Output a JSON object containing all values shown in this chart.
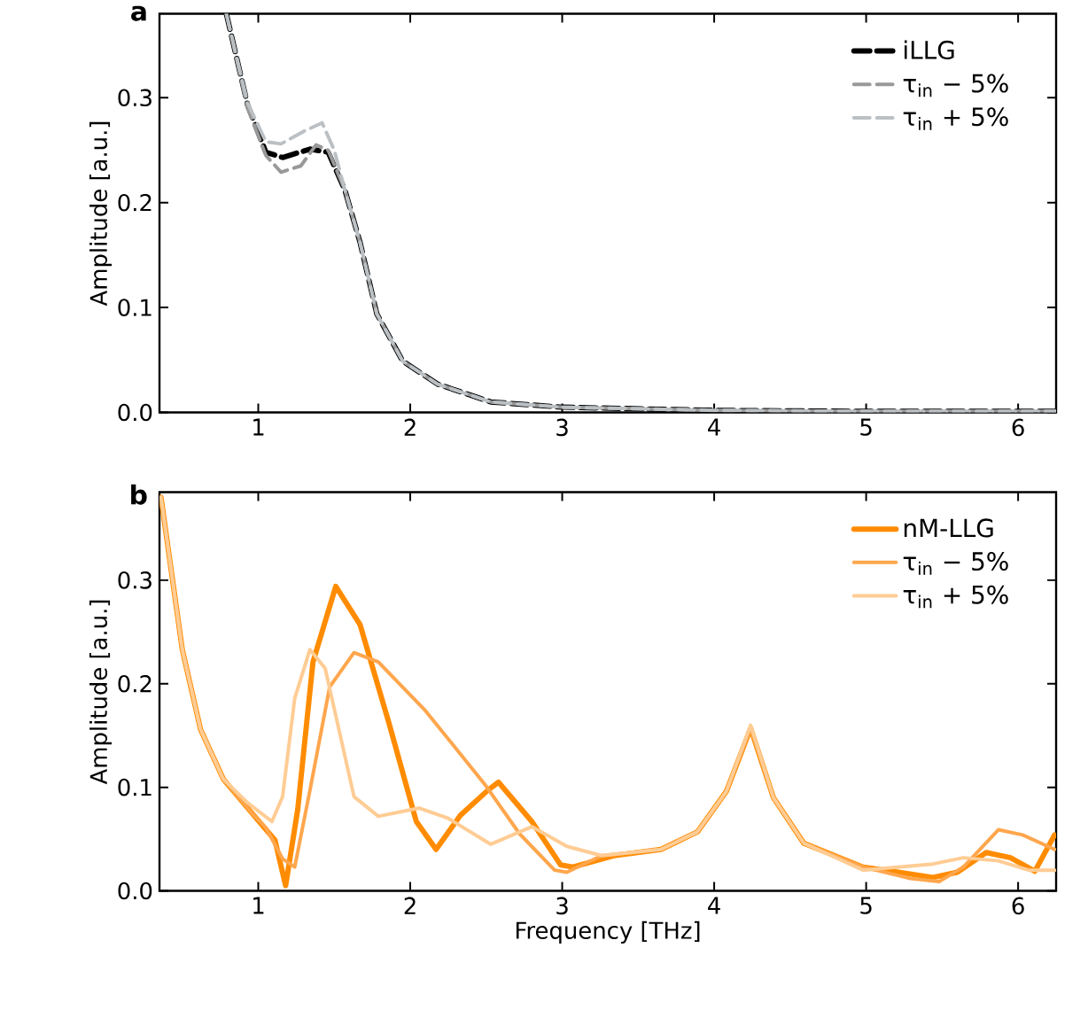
{
  "chart_data": [
    {
      "type": "line",
      "title": "a",
      "ylabel": "Amplitude [a.u.]",
      "xlim": [
        0.35,
        6.25
      ],
      "ylim": [
        0,
        0.38
      ],
      "xticks": [
        1,
        2,
        3,
        4,
        5,
        6
      ],
      "yticks": [
        {
          "value": 0,
          "label": "0.0"
        },
        0.1,
        0.2,
        0.3
      ],
      "legend": "top right",
      "grid": false,
      "line_style": "dashed",
      "series": [
        {
          "name": "iLLG",
          "color": "#000000",
          "x": [
            0.79,
            0.93,
            1.05,
            1.16,
            1.34,
            1.46,
            1.57,
            1.67,
            1.78,
            1.95,
            2.18,
            2.53,
            3.0,
            4.0,
            5.0,
            6.25
          ],
          "values": [
            0.38,
            0.293,
            0.248,
            0.243,
            0.251,
            0.248,
            0.212,
            0.162,
            0.094,
            0.049,
            0.027,
            0.01,
            0.005,
            0.002,
            0.001,
            0.001
          ]
        },
        {
          "name": "τ$_{in}$ − 5%",
          "color": "#999999",
          "x": [
            0.79,
            0.93,
            1.05,
            1.15,
            1.28,
            1.38,
            1.46,
            1.57,
            1.67,
            1.78,
            1.95,
            2.18,
            2.53,
            3.0,
            4.0,
            5.0,
            6.25
          ],
          "values": [
            0.38,
            0.29,
            0.245,
            0.229,
            0.235,
            0.255,
            0.25,
            0.212,
            0.162,
            0.094,
            0.049,
            0.027,
            0.01,
            0.005,
            0.002,
            0.001,
            0.001
          ]
        },
        {
          "name": "τ$_{in}$ + 5%",
          "color": "#bbc0c4",
          "x": [
            0.79,
            0.93,
            1.05,
            1.15,
            1.3,
            1.42,
            1.5,
            1.57,
            1.67,
            1.78,
            1.95,
            2.18,
            2.53,
            3.0,
            4.0,
            5.0,
            6.25
          ],
          "values": [
            0.38,
            0.295,
            0.258,
            0.256,
            0.268,
            0.276,
            0.25,
            0.212,
            0.162,
            0.094,
            0.049,
            0.027,
            0.01,
            0.005,
            0.002,
            0.001,
            0.001
          ]
        }
      ]
    },
    {
      "type": "line",
      "title": "b",
      "xlabel": "Frequency [THz]",
      "ylabel": "Amplitude [a.u.]",
      "xlim": [
        0.35,
        6.25
      ],
      "ylim": [
        0,
        0.385
      ],
      "xticks": [
        1,
        2,
        3,
        4,
        5,
        6
      ],
      "yticks": [
        {
          "value": 0,
          "label": "0.0"
        },
        0.1,
        0.2,
        0.3
      ],
      "legend": "top right",
      "grid": false,
      "line_style": "solid",
      "series": [
        {
          "name": "nM-LLG",
          "color": "#ff8c00",
          "x": [
            0.36,
            0.5,
            0.62,
            0.77,
            0.97,
            1.11,
            1.18,
            1.26,
            1.36,
            1.51,
            1.67,
            1.86,
            2.04,
            2.17,
            2.33,
            2.51,
            2.58,
            2.8,
            2.99,
            3.07,
            3.34,
            3.65,
            3.89,
            4.08,
            4.24,
            4.39,
            4.59,
            4.98,
            5.44,
            5.6,
            5.79,
            5.95,
            6.11,
            6.24
          ],
          "values": [
            0.38,
            0.233,
            0.156,
            0.108,
            0.073,
            0.049,
            0.005,
            0.079,
            0.221,
            0.294,
            0.257,
            0.162,
            0.067,
            0.04,
            0.073,
            0.097,
            0.105,
            0.067,
            0.025,
            0.023,
            0.034,
            0.04,
            0.057,
            0.096,
            0.157,
            0.09,
            0.046,
            0.023,
            0.013,
            0.018,
            0.037,
            0.032,
            0.019,
            0.054
          ]
        },
        {
          "name": "τ$_{in}$ − 5%",
          "color": "#ffa64d",
          "x": [
            0.36,
            0.5,
            0.62,
            0.77,
            0.97,
            1.05,
            1.16,
            1.24,
            1.34,
            1.47,
            1.63,
            1.79,
            2.1,
            2.49,
            2.72,
            2.95,
            3.03,
            3.26,
            3.65,
            3.89,
            4.08,
            4.24,
            4.39,
            4.59,
            4.98,
            5.29,
            5.48,
            5.64,
            5.87,
            6.03,
            6.24
          ],
          "values": [
            0.38,
            0.233,
            0.156,
            0.108,
            0.073,
            0.061,
            0.031,
            0.023,
            0.097,
            0.197,
            0.23,
            0.221,
            0.174,
            0.103,
            0.055,
            0.02,
            0.018,
            0.034,
            0.04,
            0.057,
            0.096,
            0.157,
            0.09,
            0.046,
            0.023,
            0.012,
            0.009,
            0.023,
            0.059,
            0.054,
            0.04
          ]
        },
        {
          "name": "τ$_{in}$ + 5%",
          "color": "#ffcc94",
          "x": [
            0.36,
            0.5,
            0.62,
            0.77,
            0.93,
            1.09,
            1.16,
            1.24,
            1.34,
            1.44,
            1.63,
            1.79,
            2.06,
            2.25,
            2.53,
            2.8,
            3.03,
            3.26,
            3.65,
            3.89,
            4.08,
            4.24,
            4.39,
            4.59,
            4.98,
            5.44,
            5.64,
            5.87,
            6.07,
            6.24
          ],
          "values": [
            0.38,
            0.233,
            0.156,
            0.108,
            0.085,
            0.067,
            0.091,
            0.186,
            0.233,
            0.215,
            0.091,
            0.072,
            0.08,
            0.07,
            0.045,
            0.062,
            0.043,
            0.034,
            0.04,
            0.057,
            0.096,
            0.16,
            0.09,
            0.046,
            0.02,
            0.026,
            0.032,
            0.029,
            0.02,
            0.02
          ]
        }
      ]
    }
  ]
}
